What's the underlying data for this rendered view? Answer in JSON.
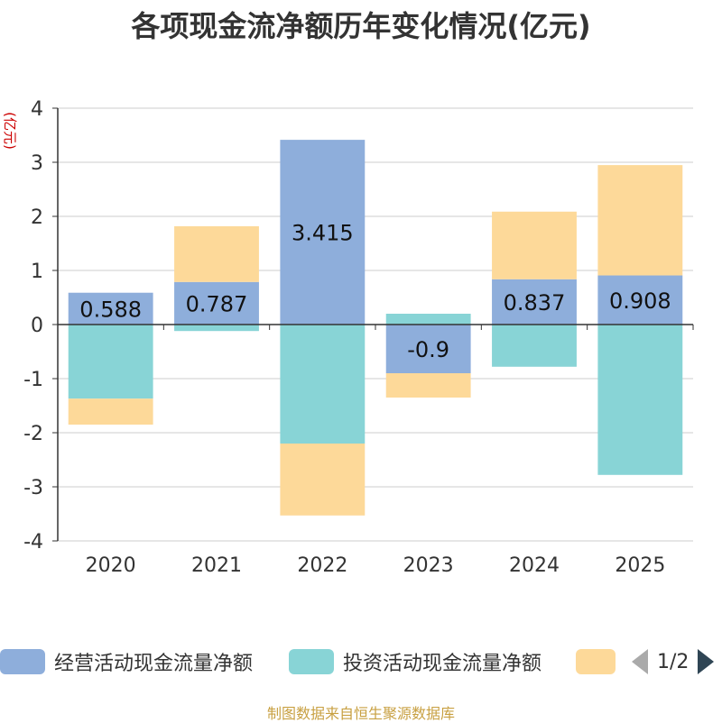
{
  "chart_data": {
    "type": "bar",
    "stacked": true,
    "title": "各项现金流净额历年变化情况(亿元)",
    "ylabel": "(亿元)",
    "xlabel": "",
    "ylim": [
      -4,
      4
    ],
    "yticks": [
      -4,
      -3,
      -2,
      -1,
      0,
      1,
      2,
      3,
      4
    ],
    "grid": true,
    "categories": [
      "2020",
      "2021",
      "2022",
      "2023",
      "2024",
      "2025"
    ],
    "series": [
      {
        "name": "经营活动现金流量净额",
        "color": "#8eaedb",
        "values": [
          0.588,
          0.787,
          3.415,
          -0.9,
          0.837,
          0.908
        ],
        "labels": [
          "0.588",
          "0.787",
          "3.415",
          "-0.9",
          "0.837",
          "0.908"
        ]
      },
      {
        "name": "投资活动现金流量净额",
        "color": "#88d4d6",
        "values": [
          -1.37,
          -0.12,
          -2.2,
          0.2,
          -0.78,
          -2.78
        ]
      },
      {
        "name": "",
        "color": "#fdd999",
        "values": [
          -0.48,
          1.03,
          -1.33,
          -0.45,
          1.25,
          2.04
        ]
      }
    ],
    "legend_position": "bottom",
    "pager": "1/2"
  },
  "legend": {
    "items": [
      {
        "label": "经营活动现金流量净额",
        "color": "#8eaedb"
      },
      {
        "label": "投资活动现金流量净额",
        "color": "#88d4d6"
      },
      {
        "label": "",
        "color": "#fdd999"
      }
    ],
    "pager_text": "1/2"
  },
  "source": "制图数据来自恒生聚源数据库"
}
